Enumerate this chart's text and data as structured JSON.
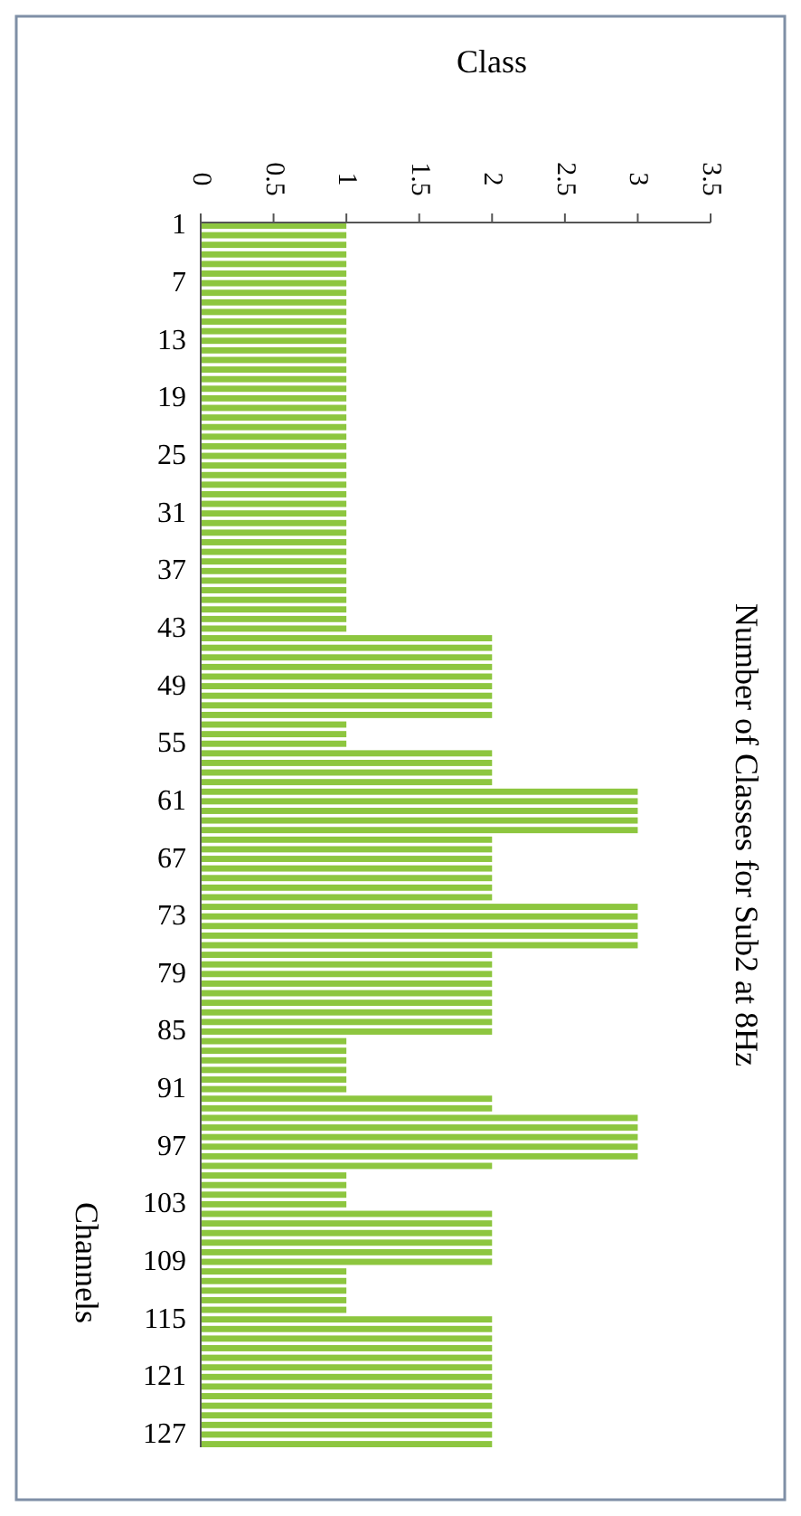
{
  "chart_data": {
    "type": "bar",
    "orientation": "horizontal",
    "title": "Number of Classes for Sub2 at 8Hz",
    "xlabel": "Class",
    "ylabel": "Channels",
    "categories": [
      "1",
      null,
      null,
      null,
      null,
      null,
      "7",
      null,
      null,
      null,
      null,
      null,
      "13",
      null,
      null,
      null,
      null,
      null,
      "19",
      null,
      null,
      null,
      null,
      null,
      "25",
      null,
      null,
      null,
      null,
      null,
      "31",
      null,
      null,
      null,
      null,
      null,
      "37",
      null,
      null,
      null,
      null,
      null,
      "43",
      null,
      null,
      null,
      null,
      null,
      "49",
      null,
      null,
      null,
      null,
      null,
      "55",
      null,
      null,
      null,
      null,
      null,
      "61",
      null,
      null,
      null,
      null,
      null,
      "67",
      null,
      null,
      null,
      null,
      null,
      "73",
      null,
      null,
      null,
      null,
      null,
      "79",
      null,
      null,
      null,
      null,
      null,
      "85",
      null,
      null,
      null,
      null,
      null,
      "91",
      null,
      null,
      null,
      null,
      null,
      "97",
      null,
      null,
      null,
      null,
      null,
      "103",
      null,
      null,
      null,
      null,
      null,
      "109",
      null,
      null,
      null,
      null,
      null,
      "115",
      null,
      null,
      null,
      null,
      null,
      "121",
      null,
      null,
      null,
      null,
      null,
      "127",
      null
    ],
    "values": [
      1,
      1,
      1,
      1,
      1,
      1,
      1,
      1,
      1,
      1,
      1,
      1,
      1,
      1,
      1,
      1,
      1,
      1,
      1,
      1,
      1,
      1,
      1,
      1,
      1,
      1,
      1,
      1,
      1,
      1,
      1,
      1,
      1,
      1,
      1,
      1,
      1,
      1,
      1,
      1,
      1,
      1,
      1,
      2,
      2,
      2,
      2,
      2,
      2,
      2,
      2,
      2,
      1,
      1,
      1,
      2,
      2,
      2,
      2,
      3,
      3,
      3,
      3,
      3,
      2,
      2,
      2,
      2,
      2,
      2,
      2,
      3,
      3,
      3,
      3,
      3,
      2,
      2,
      2,
      2,
      2,
      2,
      2,
      2,
      2,
      1,
      1,
      1,
      1,
      1,
      1,
      2,
      2,
      3,
      3,
      3,
      3,
      3,
      2,
      1,
      1,
      1,
      1,
      2,
      2,
      2,
      2,
      2,
      2,
      1,
      1,
      1,
      1,
      1,
      2,
      2,
      2,
      2,
      2,
      2,
      2,
      2,
      2,
      2,
      2,
      2,
      2,
      2
    ],
    "color": "#8dc63f",
    "xlim": [
      0,
      3.5
    ],
    "xticks": [
      0,
      0.5,
      1,
      1.5,
      2,
      2.5,
      3,
      3.5
    ]
  }
}
